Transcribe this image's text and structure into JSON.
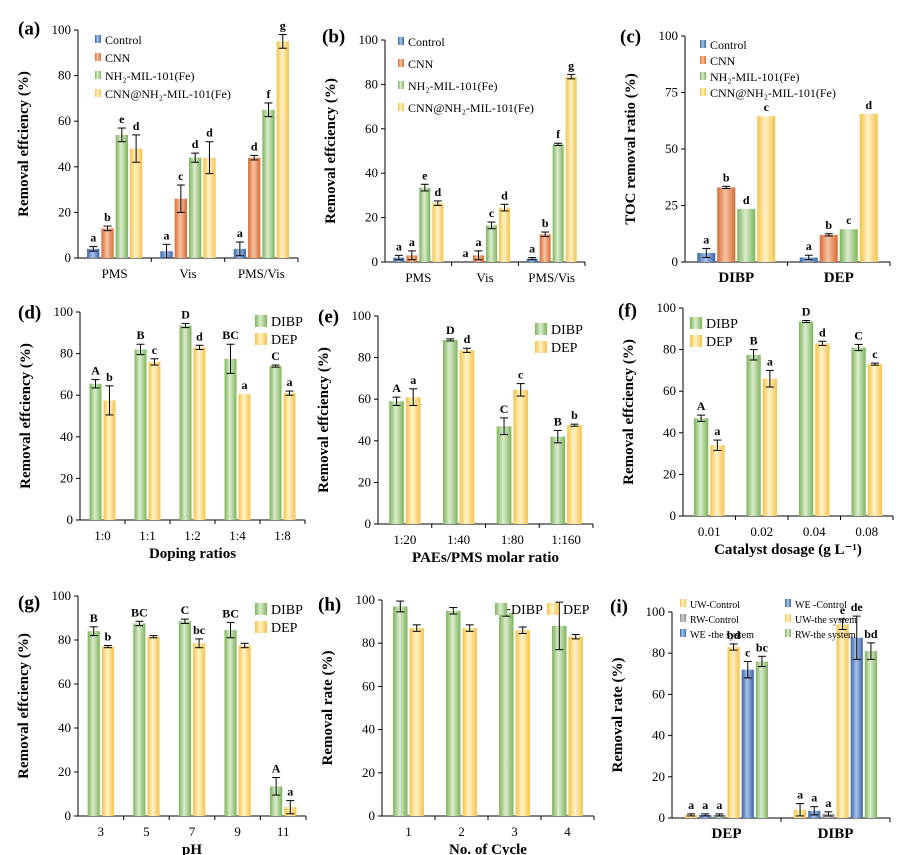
{
  "colors": {
    "blue": [
      "#3c64a5",
      "#a8c3ea"
    ],
    "orange": [
      "#d86a35",
      "#f7c4a3"
    ],
    "green": [
      "#7cb45a",
      "#dbeccf"
    ],
    "yellow": [
      "#f5c24a",
      "#fff3c8"
    ],
    "grey": [
      "#8a8a8a",
      "#cfcfcf"
    ]
  },
  "chart_data": [
    {
      "id": "a",
      "label": "(a)",
      "type": "bar",
      "ylabel": "Removal effciency (%)",
      "xlabel": "",
      "ylim": [
        0,
        100
      ],
      "yticks": [
        0,
        20,
        40,
        60,
        80,
        100
      ],
      "categories": [
        "PMS",
        "Vis",
        "PMS/Vis"
      ],
      "legend": "top-left",
      "series": [
        {
          "name": "Control",
          "color": "blue",
          "values": [
            4,
            3,
            4
          ],
          "errors": [
            1,
            3,
            3
          ],
          "labels": [
            "a",
            "a",
            "a"
          ]
        },
        {
          "name": "CNN",
          "color": "orange",
          "values": [
            13,
            26,
            44
          ],
          "errors": [
            1,
            6,
            1
          ],
          "labels": [
            "b",
            "c",
            "d"
          ]
        },
        {
          "name": "NH₂-MIL-101(Fe)",
          "color": "green",
          "values": [
            54,
            44,
            65
          ],
          "errors": [
            3,
            2,
            3
          ],
          "labels": [
            "e",
            "d",
            "f"
          ]
        },
        {
          "name": "CNN@NH₂-MIL-101(Fe)",
          "color": "yellow",
          "values": [
            48,
            44,
            95
          ],
          "errors": [
            6,
            7,
            3
          ],
          "labels": [
            "d",
            "d",
            "g"
          ]
        }
      ]
    },
    {
      "id": "b",
      "label": "(b)",
      "type": "bar",
      "ylabel": "Removal effciency (%)",
      "xlabel": "",
      "ylim": [
        0,
        100
      ],
      "yticks": [
        0,
        20,
        40,
        60,
        80,
        100
      ],
      "categories": [
        "PMS",
        "Vis",
        "PMS/Vis"
      ],
      "legend": "top-left",
      "series": [
        {
          "name": "Control",
          "color": "blue",
          "values": [
            2,
            0,
            1.5
          ],
          "errors": [
            1,
            0,
            0.5
          ],
          "labels": [
            "a",
            "a",
            "a"
          ]
        },
        {
          "name": "CNN",
          "color": "orange",
          "values": [
            3,
            3,
            12.5
          ],
          "errors": [
            2,
            2,
            1
          ],
          "labels": [
            "a",
            "a",
            "b"
          ]
        },
        {
          "name": "NH₂-MIL-101(Fe)",
          "color": "green",
          "values": [
            33.5,
            16.5,
            53
          ],
          "errors": [
            1.5,
            1.5,
            0.5
          ],
          "labels": [
            "e",
            "c",
            "f"
          ]
        },
        {
          "name": "CNN@NH₂-MIL-101(Fe)",
          "color": "yellow",
          "values": [
            26.5,
            24.5,
            83.5
          ],
          "errors": [
            1,
            1.5,
            1
          ],
          "labels": [
            "d",
            "d",
            "g"
          ]
        }
      ]
    },
    {
      "id": "c",
      "label": "(c)",
      "type": "bar",
      "ylabel": "TOC removal ratio (%)",
      "xlabel": "",
      "ylim": [
        0,
        100
      ],
      "yticks": [
        0,
        25,
        50,
        75,
        100
      ],
      "categories": [
        "DIBP",
        "DEP"
      ],
      "bold_categories": true,
      "legend": "top-left",
      "series": [
        {
          "name": "Control",
          "color": "blue",
          "values": [
            4,
            2
          ],
          "errors": [
            2,
            1
          ],
          "labels": [
            "a",
            "a"
          ]
        },
        {
          "name": "CNN",
          "color": "orange",
          "values": [
            33,
            12
          ],
          "errors": [
            0.5,
            0.5
          ],
          "labels": [
            "b",
            "b"
          ]
        },
        {
          "name": "NH₂-MIL-101(Fe)",
          "color": "green",
          "values": [
            23.5,
            14.5
          ],
          "errors": [
            0,
            0
          ],
          "labels": [
            "d",
            "c"
          ]
        },
        {
          "name": "CNN@NH₂-MIL-101(Fe)",
          "color": "yellow",
          "values": [
            64.5,
            65.5
          ],
          "errors": [
            0,
            0
          ],
          "labels": [
            "c",
            "d"
          ]
        }
      ]
    },
    {
      "id": "d",
      "label": "(d)",
      "type": "bar",
      "ylabel": "Removal effciency (%)",
      "xlabel": "Doping ratios",
      "ylim": [
        0,
        100
      ],
      "yticks": [
        0,
        20,
        40,
        60,
        80,
        100
      ],
      "categories": [
        "1:0",
        "1:1",
        "1:2",
        "1:4",
        "1:8"
      ],
      "legend": "top-right",
      "series": [
        {
          "name": "DIBP",
          "color": "green",
          "values": [
            65.5,
            82,
            93.5,
            77.5,
            74
          ],
          "errors": [
            2,
            2.5,
            1,
            7,
            0.5
          ],
          "labels": [
            "A",
            "B",
            "D",
            "BC",
            "C"
          ]
        },
        {
          "name": "DEP",
          "color": "yellow",
          "values": [
            57.5,
            76,
            83,
            60.5,
            61
          ],
          "errors": [
            7,
            1.5,
            1,
            0,
            1
          ],
          "labels": [
            "b",
            "c",
            "d",
            "a",
            "a"
          ]
        }
      ]
    },
    {
      "id": "e",
      "label": "(e)",
      "type": "bar",
      "ylabel": "Removal effciency (%)",
      "xlabel": "PAEs/PMS molar ratio",
      "ylim": [
        0,
        100
      ],
      "yticks": [
        0,
        20,
        40,
        60,
        80,
        100
      ],
      "categories": [
        "1:20",
        "1:40",
        "1:80",
        "1:160"
      ],
      "legend": "top-right",
      "series": [
        {
          "name": "DIBP",
          "color": "green",
          "values": [
            59,
            88.5,
            47,
            42
          ],
          "errors": [
            2,
            0.5,
            4,
            3
          ],
          "labels": [
            "A",
            "D",
            "C",
            "B"
          ]
        },
        {
          "name": "DEP",
          "color": "yellow",
          "values": [
            61,
            83.5,
            64.5,
            47.5
          ],
          "errors": [
            4,
            1,
            3,
            0.5
          ],
          "labels": [
            "a",
            "d",
            "c",
            "b"
          ]
        }
      ]
    },
    {
      "id": "f",
      "label": "(f)",
      "type": "bar",
      "ylabel": "Removal effciency (%)",
      "xlabel": "Catalyst dosage (g L⁻¹)",
      "ylim": [
        0,
        100
      ],
      "yticks": [
        0,
        20,
        40,
        60,
        80,
        100
      ],
      "categories": [
        "0.01",
        "0.02",
        "0.04",
        "0.08"
      ],
      "legend": "top-left",
      "series": [
        {
          "name": "DIBP",
          "color": "green",
          "values": [
            47,
            77.5,
            93.5,
            81
          ],
          "errors": [
            1.5,
            2.5,
            0.5,
            1.5
          ],
          "labels": [
            "A",
            "B",
            "D",
            "C"
          ]
        },
        {
          "name": "DEP",
          "color": "yellow",
          "values": [
            34,
            66,
            83,
            73
          ],
          "errors": [
            2.5,
            4,
            1,
            0.5
          ],
          "labels": [
            "a",
            "a",
            "d",
            "c"
          ]
        }
      ]
    },
    {
      "id": "g",
      "label": "(g)",
      "type": "bar",
      "ylabel": "Removal effciency (%)",
      "xlabel": "pH",
      "ylim": [
        0,
        100
      ],
      "yticks": [
        0,
        20,
        40,
        60,
        80,
        100
      ],
      "categories": [
        "3",
        "5",
        "7",
        "9",
        "11"
      ],
      "legend": "top-right",
      "series": [
        {
          "name": "DIBP",
          "color": "green",
          "values": [
            84,
            87.5,
            88.5,
            84.5,
            13.5
          ],
          "errors": [
            2,
            1,
            1,
            3.5,
            4
          ],
          "labels": [
            "B",
            "BC",
            "C",
            "BC",
            "A"
          ]
        },
        {
          "name": "DEP",
          "color": "yellow",
          "values": [
            77,
            81.5,
            78.5,
            77.5,
            4
          ],
          "errors": [
            0.5,
            0.5,
            2,
            1,
            3
          ],
          "labels": [
            "b",
            "",
            "bc",
            "",
            "a"
          ]
        }
      ]
    },
    {
      "id": "h",
      "label": "(h)",
      "type": "bar",
      "ylabel": "Removal rate (%)",
      "xlabel": "No. of Cycle",
      "ylim": [
        0,
        100
      ],
      "yticks": [
        0,
        20,
        40,
        60,
        80,
        100
      ],
      "categories": [
        "1",
        "2",
        "3",
        "4"
      ],
      "legend": "top-right",
      "legend_inline": true,
      "series": [
        {
          "name": "DIBP",
          "color": "green",
          "values": [
            97,
            95,
            94,
            88
          ],
          "errors": [
            2.5,
            1.5,
            1.5,
            11
          ],
          "labels": [
            "",
            "",
            "",
            ""
          ]
        },
        {
          "name": "DEP",
          "color": "yellow",
          "values": [
            87,
            87,
            86,
            83
          ],
          "errors": [
            1.5,
            1.5,
            1.5,
            1
          ],
          "labels": [
            "",
            "",
            "",
            ""
          ]
        }
      ]
    },
    {
      "id": "i",
      "label": "(i)",
      "type": "bar",
      "ylabel": "Removal rate (%)",
      "xlabel": "",
      "ylim": [
        0,
        100
      ],
      "yticks": [
        0,
        20,
        40,
        60,
        80,
        100
      ],
      "categories": [
        "DEP",
        "DIBP"
      ],
      "bold_categories": true,
      "legend": "top",
      "legend_columns": 2,
      "series": [
        {
          "name": "UW-Control",
          "color": "yellow",
          "values": [
            1.5,
            4
          ],
          "errors": [
            0.5,
            3
          ],
          "labels": [
            "a",
            "a"
          ]
        },
        {
          "name": "WE -Control",
          "color": "blue",
          "values": [
            1.5,
            3.5
          ],
          "errors": [
            0.5,
            2
          ],
          "labels": [
            "a",
            "a"
          ]
        },
        {
          "name": "RW-Control",
          "color": "grey",
          "values": [
            1.5,
            2
          ],
          "errors": [
            0.5,
            1
          ],
          "labels": [
            "a",
            "a"
          ]
        },
        {
          "name": "UW-the system",
          "color": "yellow",
          "values": [
            83,
            94
          ],
          "errors": [
            1.5,
            2.5
          ],
          "labels": [
            "bd",
            "e"
          ]
        },
        {
          "name": "WE -the system",
          "color": "blue",
          "values": [
            72,
            87.5
          ],
          "errors": [
            4,
            10.5
          ],
          "labels": [
            "c",
            "de"
          ]
        },
        {
          "name": "RW-the system",
          "color": "green",
          "values": [
            76,
            81
          ],
          "errors": [
            2.5,
            4
          ],
          "labels": [
            "bc",
            "bd"
          ]
        }
      ]
    }
  ]
}
